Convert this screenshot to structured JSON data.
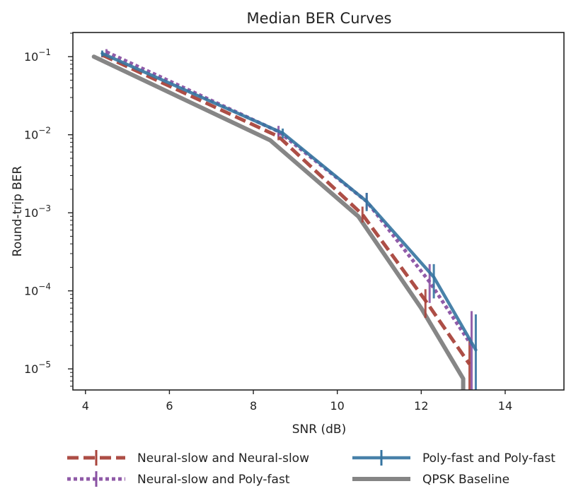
{
  "chart_data": {
    "type": "line",
    "title": "Median BER Curves",
    "xlabel": "SNR (dB)",
    "ylabel": "Round-trip BER",
    "xlim": [
      3.7,
      15.4
    ],
    "ylim_log10": [
      -5.27,
      -0.69
    ],
    "yscale": "log",
    "x_ticks": [
      4,
      6,
      8,
      10,
      12,
      14
    ],
    "x_tick_labels": [
      "4",
      "6",
      "8",
      "10",
      "12",
      "14"
    ],
    "y_ticks": [
      {
        "exp": -1,
        "base": "10",
        "sup": "−1"
      },
      {
        "exp": -2,
        "base": "10",
        "sup": "−2"
      },
      {
        "exp": -3,
        "base": "10",
        "sup": "−3"
      },
      {
        "exp": -4,
        "base": "10",
        "sup": "−4"
      },
      {
        "exp": -5,
        "base": "10",
        "sup": "−5"
      }
    ],
    "legend_position": "below",
    "series": [
      {
        "name": "Neural-slow and Neural-slow",
        "color": "#a9443c",
        "style": "dashed",
        "points": [
          {
            "x": 4.4,
            "y": 0.105,
            "err": [
              0.098,
              0.115
            ]
          },
          {
            "x": 8.6,
            "y": 0.0095,
            "err": [
              0.0085,
              0.011
            ]
          },
          {
            "x": 10.6,
            "y": 0.00095,
            "err": [
              0.00075,
              0.0012
            ]
          },
          {
            "x": 12.1,
            "y": 7.5e-05,
            "err": [
              4.5e-05,
              0.000105
            ]
          },
          {
            "x": 13.15,
            "y": 1.15e-05,
            "err": [
              5.3e-06,
              2.5e-05
            ]
          }
        ]
      },
      {
        "name": "Neural-slow and Poly-fast",
        "color": "#8a52a3",
        "style": "dotted",
        "points": [
          {
            "x": 4.5,
            "y": 0.115,
            "err": [
              0.105,
              0.125
            ]
          },
          {
            "x": 8.6,
            "y": 0.011,
            "err": [
              0.0095,
              0.013
            ]
          },
          {
            "x": 10.7,
            "y": 0.0014,
            "err": [
              0.0011,
              0.0018
            ]
          },
          {
            "x": 12.2,
            "y": 0.00013,
            "err": [
              7e-05,
              0.00022
            ]
          },
          {
            "x": 13.2,
            "y": 2e-05,
            "err": [
              5.3e-06,
              5.5e-05
            ]
          }
        ]
      },
      {
        "name": "Poly-fast and Poly-fast",
        "color": "#3574a0",
        "style": "solid",
        "points": [
          {
            "x": 4.4,
            "y": 0.11,
            "err": [
              0.1,
              0.12
            ]
          },
          {
            "x": 8.7,
            "y": 0.0105,
            "err": [
              0.009,
              0.012
            ]
          },
          {
            "x": 10.7,
            "y": 0.0014,
            "err": [
              0.00105,
              0.0018
            ]
          },
          {
            "x": 12.3,
            "y": 0.00015,
            "err": [
              8e-05,
              0.00022
            ]
          },
          {
            "x": 13.3,
            "y": 1.75e-05,
            "err": [
              5.3e-06,
              5e-05
            ]
          }
        ]
      },
      {
        "name": "QPSK Baseline",
        "color": "#7f7f7f",
        "style": "solid-thick",
        "points": [
          {
            "x": 4.2,
            "y": 0.1
          },
          {
            "x": 8.4,
            "y": 0.0085
          },
          {
            "x": 10.5,
            "y": 0.0009
          },
          {
            "x": 12.0,
            "y": 6e-05
          },
          {
            "x": 13.0,
            "y": 7.5e-06
          },
          {
            "x": 13.0,
            "y": 5.3e-06
          }
        ]
      }
    ]
  }
}
